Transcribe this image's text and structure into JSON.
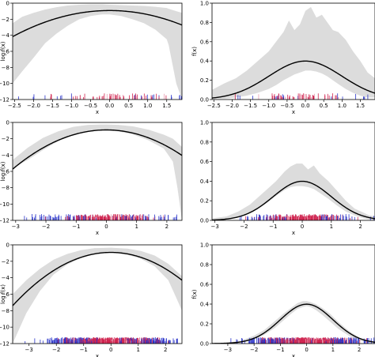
{
  "chart_data": [
    {
      "type": "line",
      "xlabel": "x",
      "ylabel": "log f(x)",
      "xlim": [
        -2.55,
        1.9
      ],
      "ylim": [
        -12,
        0
      ],
      "xticks": [
        -2.5,
        -2.0,
        -1.5,
        -1.0,
        -0.5,
        0.0,
        0.5,
        1.0,
        1.5
      ],
      "xtick_labels": [
        "−2.5",
        "−2.0",
        "−1.5",
        "−1.0",
        "−0.5",
        "0.0",
        "0.5",
        "1.0",
        "1.5"
      ],
      "yticks": [
        -12,
        -10,
        -8,
        -6,
        -4,
        -2,
        0
      ],
      "ytick_labels": [
        "−12",
        "−10",
        "−8",
        "−6",
        "−4",
        "−2",
        "0"
      ],
      "band": {
        "x": [
          -2.55,
          -2.3,
          -2.0,
          -1.7,
          -1.4,
          -1.1,
          -0.8,
          -0.5,
          -0.2,
          0.0,
          0.3,
          0.6,
          0.9,
          1.2,
          1.5,
          1.55,
          1.75,
          1.9
        ],
        "upper": [
          -2.5,
          -1.7,
          -1.2,
          -0.8,
          -0.5,
          -0.3,
          -0.2,
          -0.15,
          -0.15,
          -0.2,
          -0.25,
          -0.3,
          -0.35,
          -0.45,
          -0.6,
          -0.7,
          -1.0,
          -1.2
        ],
        "lower": [
          -10.0,
          -8.5,
          -6.8,
          -5.0,
          -3.8,
          -2.8,
          -2.0,
          -1.6,
          -1.4,
          -1.4,
          -1.6,
          -2.0,
          -2.5,
          -3.3,
          -4.5,
          -5.2,
          -10.0,
          -12.0
        ]
      },
      "series": [
        {
          "type": "normal-log-density",
          "mean": 0.0,
          "sd": 1.0,
          "color": "#000000"
        }
      ],
      "rug": {
        "samples": 70,
        "range": [
          -2.55,
          1.9
        ]
      }
    },
    {
      "type": "line",
      "xlabel": "x",
      "ylabel": "f(x)",
      "xlim": [
        -2.55,
        1.9
      ],
      "ylim": [
        0,
        1.0
      ],
      "xticks": [
        -2.5,
        -2.0,
        -1.5,
        -1.0,
        -0.5,
        0.0,
        0.5,
        1.0,
        1.5
      ],
      "xtick_labels": [
        "−2.5",
        "−2.0",
        "−1.5",
        "−1.0",
        "−0.5",
        "0.0",
        "0.5",
        "1.0",
        "1.5"
      ],
      "yticks": [
        0.0,
        0.2,
        0.4,
        0.6,
        0.8,
        1.0
      ],
      "ytick_labels": [
        "0.0",
        "0.2",
        "0.4",
        "0.6",
        "0.8",
        "1.0"
      ],
      "band": {
        "x": [
          -2.55,
          -2.2,
          -1.9,
          -1.6,
          -1.3,
          -1.0,
          -0.8,
          -0.6,
          -0.45,
          -0.3,
          -0.15,
          0.0,
          0.15,
          0.3,
          0.45,
          0.6,
          0.75,
          0.9,
          1.1,
          1.3,
          1.5,
          1.7,
          1.9
        ],
        "upper": [
          0.1,
          0.17,
          0.22,
          0.3,
          0.4,
          0.5,
          0.6,
          0.7,
          0.82,
          0.72,
          0.78,
          0.92,
          0.96,
          0.85,
          0.88,
          0.8,
          0.72,
          0.7,
          0.62,
          0.5,
          0.4,
          0.28,
          0.22
        ],
        "lower": [
          0.01,
          0.01,
          0.02,
          0.04,
          0.07,
          0.11,
          0.15,
          0.2,
          0.23,
          0.26,
          0.28,
          0.3,
          0.3,
          0.29,
          0.27,
          0.24,
          0.2,
          0.16,
          0.11,
          0.07,
          0.04,
          0.02,
          0.02
        ]
      },
      "series": [
        {
          "type": "normal-density",
          "mean": 0.0,
          "sd": 1.0,
          "color": "#000000"
        }
      ],
      "rug": {
        "samples": 70,
        "range": [
          -2.55,
          1.9
        ]
      }
    },
    {
      "type": "line",
      "xlabel": "x",
      "ylabel": "log f(x)",
      "xlim": [
        -3.1,
        2.5
      ],
      "ylim": [
        -12,
        0
      ],
      "xticks": [
        -3,
        -2,
        -1,
        0,
        1,
        2
      ],
      "xtick_labels": [
        "−3",
        "−2",
        "−1",
        "0",
        "1",
        "2"
      ],
      "yticks": [
        -12,
        -10,
        -8,
        -6,
        -4,
        -2,
        0
      ],
      "ytick_labels": [
        "−12",
        "−10",
        "−8",
        "−6",
        "−4",
        "−2",
        "0"
      ],
      "band": {
        "x": [
          -3.1,
          -2.6,
          -2.1,
          -1.6,
          -1.1,
          -0.6,
          -0.1,
          0.0,
          0.4,
          0.9,
          1.4,
          1.9,
          2.2,
          2.35,
          2.5
        ],
        "upper": [
          -4.6,
          -3.1,
          -1.9,
          -1.1,
          -0.55,
          -0.3,
          -0.25,
          -0.25,
          -0.3,
          -0.5,
          -0.9,
          -1.5,
          -2.0,
          -2.5,
          -3.0
        ],
        "lower": [
          -5.6,
          -4.6,
          -3.4,
          -2.3,
          -1.5,
          -1.1,
          -0.95,
          -0.95,
          -1.1,
          -1.5,
          -2.2,
          -3.2,
          -4.8,
          -8.0,
          -12.0
        ]
      },
      "series": [
        {
          "type": "normal-log-density",
          "mean": 0.0,
          "sd": 1.0,
          "color": "#000000"
        }
      ],
      "rug": {
        "samples": 260,
        "range": [
          -3.1,
          2.5
        ]
      }
    },
    {
      "type": "line",
      "xlabel": "x",
      "ylabel": "",
      "xlim": [
        -3.1,
        2.5
      ],
      "ylim": [
        0,
        1.0
      ],
      "xticks": [
        -3,
        -2,
        -1,
        0,
        1,
        2
      ],
      "xtick_labels": [
        "−3",
        "−2",
        "−1",
        "0",
        "1",
        "2"
      ],
      "yticks": [
        0.0,
        0.2,
        0.4,
        0.6,
        0.8,
        1.0
      ],
      "ytick_labels": [
        "0.0",
        "0.2",
        "0.4",
        "0.6",
        "0.8",
        "1.0"
      ],
      "band": {
        "x": [
          -3.1,
          -2.6,
          -2.2,
          -1.8,
          -1.5,
          -1.2,
          -0.9,
          -0.6,
          -0.4,
          -0.2,
          0.0,
          0.2,
          0.4,
          0.6,
          0.9,
          1.2,
          1.5,
          1.8,
          2.1,
          2.3,
          2.5
        ],
        "upper": [
          0.02,
          0.04,
          0.09,
          0.16,
          0.24,
          0.32,
          0.4,
          0.5,
          0.55,
          0.58,
          0.58,
          0.52,
          0.56,
          0.48,
          0.4,
          0.3,
          0.2,
          0.12,
          0.08,
          0.05,
          0.04
        ],
        "lower": [
          0.0,
          0.01,
          0.03,
          0.07,
          0.12,
          0.18,
          0.25,
          0.31,
          0.34,
          0.35,
          0.35,
          0.34,
          0.32,
          0.28,
          0.22,
          0.15,
          0.09,
          0.05,
          0.02,
          0.01,
          0.0
        ]
      },
      "series": [
        {
          "type": "normal-density",
          "mean": 0.0,
          "sd": 1.0,
          "color": "#000000"
        }
      ],
      "rug": {
        "samples": 260,
        "range": [
          -3.1,
          2.5
        ]
      }
    },
    {
      "type": "line",
      "xlabel": "x",
      "ylabel": "log f(x)",
      "xlim": [
        -3.6,
        2.6
      ],
      "ylim": [
        -12,
        0
      ],
      "xticks": [
        -3,
        -2,
        -1,
        0,
        1,
        2
      ],
      "xtick_labels": [
        "−3",
        "−2",
        "−1",
        "0",
        "1",
        "2"
      ],
      "yticks": [
        -12,
        -10,
        -8,
        -6,
        -4,
        -2,
        0
      ],
      "ytick_labels": [
        "−12",
        "−10",
        "−8",
        "−6",
        "−4",
        "−2",
        "0"
      ],
      "band": {
        "x": [
          -3.6,
          -3.1,
          -2.6,
          -2.1,
          -1.6,
          -1.1,
          -0.6,
          0.0,
          0.6,
          1.1,
          1.6,
          2.1,
          2.4,
          2.6
        ],
        "upper": [
          -6.0,
          -4.3,
          -2.9,
          -1.8,
          -1.1,
          -0.65,
          -0.4,
          -0.35,
          -0.45,
          -0.75,
          -1.3,
          -2.3,
          -3.2,
          -3.8
        ],
        "lower": [
          -12.0,
          -8.3,
          -5.6,
          -3.6,
          -2.4,
          -1.6,
          -1.1,
          -0.95,
          -1.2,
          -1.7,
          -2.6,
          -4.3,
          -6.5,
          -8.0
        ]
      },
      "series": [
        {
          "type": "normal-log-density",
          "mean": 0.0,
          "sd": 1.0,
          "color": "#000000"
        }
      ],
      "rug": {
        "samples": 700,
        "range": [
          -3.6,
          2.6
        ]
      }
    },
    {
      "type": "line",
      "xlabel": "x",
      "ylabel": "f(x)",
      "xlim": [
        -3.6,
        2.6
      ],
      "ylim": [
        0,
        1.0
      ],
      "xticks": [
        -3,
        -2,
        -1,
        0,
        1,
        2
      ],
      "xtick_labels": [
        "−3",
        "−2",
        "−1",
        "0",
        "1",
        "2"
      ],
      "yticks": [
        0.0,
        0.2,
        0.4,
        0.6,
        0.8,
        1.0
      ],
      "ytick_labels": [
        "0.0",
        "0.2",
        "0.4",
        "0.6",
        "0.8",
        "1.0"
      ],
      "band": {
        "x": [
          -3.6,
          -3.0,
          -2.5,
          -2.0,
          -1.6,
          -1.2,
          -0.9,
          -0.6,
          -0.35,
          -0.15,
          0.0,
          0.15,
          0.35,
          0.6,
          0.9,
          1.2,
          1.6,
          2.0,
          2.3,
          2.6
        ],
        "upper": [
          0.0,
          0.01,
          0.03,
          0.08,
          0.14,
          0.23,
          0.3,
          0.36,
          0.41,
          0.43,
          0.43,
          0.42,
          0.4,
          0.36,
          0.3,
          0.22,
          0.13,
          0.06,
          0.03,
          0.02
        ],
        "lower": [
          0.0,
          0.0,
          0.01,
          0.04,
          0.09,
          0.16,
          0.23,
          0.3,
          0.35,
          0.37,
          0.38,
          0.37,
          0.34,
          0.29,
          0.22,
          0.15,
          0.08,
          0.03,
          0.01,
          0.0
        ]
      },
      "series": [
        {
          "type": "normal-density",
          "mean": 0.0,
          "sd": 1.0,
          "color": "#000000"
        }
      ],
      "rug": {
        "samples": 700,
        "range": [
          -3.6,
          2.6
        ]
      }
    }
  ],
  "colors": {
    "band": "#dcdcdc",
    "curve": "#000000",
    "rug_blue": "#2b35c9",
    "rug_red": "#d02550",
    "rug_pink": "#e8a0b4"
  }
}
